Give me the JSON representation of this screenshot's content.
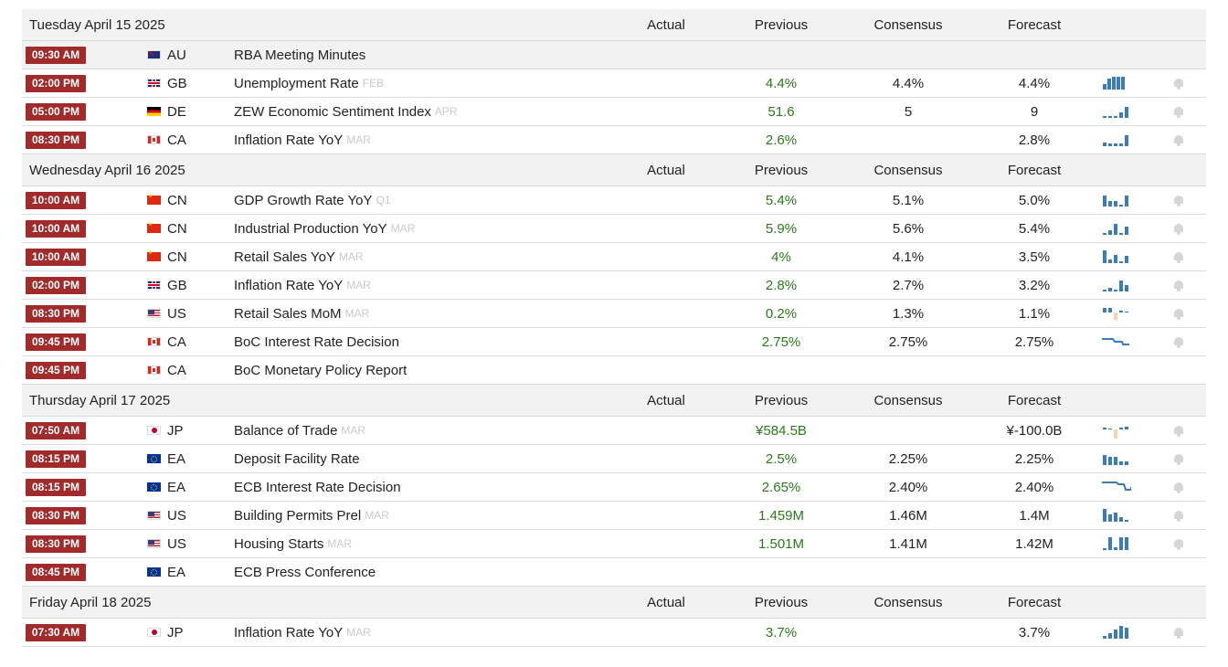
{
  "columns": {
    "actual": "Actual",
    "previous": "Previous",
    "consensus": "Consensus",
    "forecast": "Forecast"
  },
  "colors": {
    "time_badge": "#a12a2a",
    "previous_value": "#2a7a1a",
    "spark_blue": "#3a7bbd",
    "spark_orange": "#f5d5a8"
  },
  "groups": [
    {
      "date": "Tuesday April 15 2025",
      "events": [
        {
          "time": "09:30 AM",
          "country": "AU",
          "flag": "australia-flag-icon",
          "name": "RBA Meeting Minutes",
          "ref": "",
          "previous": "",
          "consensus": "",
          "forecast": "",
          "spark": "none"
        },
        {
          "time": "02:00 PM",
          "country": "GB",
          "flag": "uk-flag-icon",
          "name": "Unemployment Rate",
          "ref": "FEB",
          "previous": "4.4%",
          "consensus": "4.4%",
          "forecast": "4.4%",
          "spark": "bars"
        },
        {
          "time": "05:00 PM",
          "country": "DE",
          "flag": "germany-flag-icon",
          "name": "ZEW Economic Sentiment Index",
          "ref": "APR",
          "previous": "51.6",
          "consensus": "5",
          "forecast": "9",
          "spark": "bars"
        },
        {
          "time": "08:30 PM",
          "country": "CA",
          "flag": "canada-flag-icon",
          "name": "Inflation Rate YoY",
          "ref": "MAR",
          "previous": "2.6%",
          "consensus": "",
          "forecast": "2.8%",
          "spark": "bars"
        }
      ]
    },
    {
      "date": "Wednesday April 16 2025",
      "events": [
        {
          "time": "10:00 AM",
          "country": "CN",
          "flag": "china-flag-icon",
          "name": "GDP Growth Rate YoY",
          "ref": "Q1",
          "previous": "5.4%",
          "consensus": "5.1%",
          "forecast": "5.0%",
          "spark": "bars"
        },
        {
          "time": "10:00 AM",
          "country": "CN",
          "flag": "china-flag-icon",
          "name": "Industrial Production YoY",
          "ref": "MAR",
          "previous": "5.9%",
          "consensus": "5.6%",
          "forecast": "5.4%",
          "spark": "bars"
        },
        {
          "time": "10:00 AM",
          "country": "CN",
          "flag": "china-flag-icon",
          "name": "Retail Sales YoY",
          "ref": "MAR",
          "previous": "4%",
          "consensus": "4.1%",
          "forecast": "3.5%",
          "spark": "bars"
        },
        {
          "time": "02:00 PM",
          "country": "GB",
          "flag": "uk-flag-icon",
          "name": "Inflation Rate YoY",
          "ref": "MAR",
          "previous": "2.8%",
          "consensus": "2.7%",
          "forecast": "3.2%",
          "spark": "bars"
        },
        {
          "time": "08:30 PM",
          "country": "US",
          "flag": "us-flag-icon",
          "name": "Retail Sales MoM",
          "ref": "MAR",
          "previous": "0.2%",
          "consensus": "1.3%",
          "forecast": "1.1%",
          "spark": "mixed"
        },
        {
          "time": "09:45 PM",
          "country": "CA",
          "flag": "canada-flag-icon",
          "name": "BoC Interest Rate Decision",
          "ref": "",
          "previous": "2.75%",
          "consensus": "2.75%",
          "forecast": "2.75%",
          "spark": "step"
        },
        {
          "time": "09:45 PM",
          "country": "CA",
          "flag": "canada-flag-icon",
          "name": "BoC Monetary Policy Report",
          "ref": "",
          "previous": "",
          "consensus": "",
          "forecast": "",
          "spark": "none"
        }
      ]
    },
    {
      "date": "Thursday April 17 2025",
      "events": [
        {
          "time": "07:50 AM",
          "country": "JP",
          "flag": "japan-flag-icon",
          "name": "Balance of Trade",
          "ref": "MAR",
          "previous": "¥584.5B",
          "consensus": "",
          "forecast": "¥-100.0B",
          "spark": "mixed"
        },
        {
          "time": "08:15 PM",
          "country": "EA",
          "flag": "eu-flag-icon",
          "name": "Deposit Facility Rate",
          "ref": "",
          "previous": "2.5%",
          "consensus": "2.25%",
          "forecast": "2.25%",
          "spark": "bars"
        },
        {
          "time": "08:15 PM",
          "country": "EA",
          "flag": "eu-flag-icon",
          "name": "ECB Interest Rate Decision",
          "ref": "",
          "previous": "2.65%",
          "consensus": "2.40%",
          "forecast": "2.40%",
          "spark": "step"
        },
        {
          "time": "08:30 PM",
          "country": "US",
          "flag": "us-flag-icon",
          "name": "Building Permits Prel",
          "ref": "MAR",
          "previous": "1.459M",
          "consensus": "1.46M",
          "forecast": "1.4M",
          "spark": "bars"
        },
        {
          "time": "08:30 PM",
          "country": "US",
          "flag": "us-flag-icon",
          "name": "Housing Starts",
          "ref": "MAR",
          "previous": "1.501M",
          "consensus": "1.41M",
          "forecast": "1.42M",
          "spark": "bars"
        },
        {
          "time": "08:45 PM",
          "country": "EA",
          "flag": "eu-flag-icon",
          "name": "ECB Press Conference",
          "ref": "",
          "previous": "",
          "consensus": "",
          "forecast": "",
          "spark": "none"
        }
      ]
    },
    {
      "date": "Friday April 18 2025",
      "events": [
        {
          "time": "07:30 AM",
          "country": "JP",
          "flag": "japan-flag-icon",
          "name": "Inflation Rate YoY",
          "ref": "MAR",
          "previous": "3.7%",
          "consensus": "",
          "forecast": "3.7%",
          "spark": "bars"
        }
      ]
    }
  ]
}
